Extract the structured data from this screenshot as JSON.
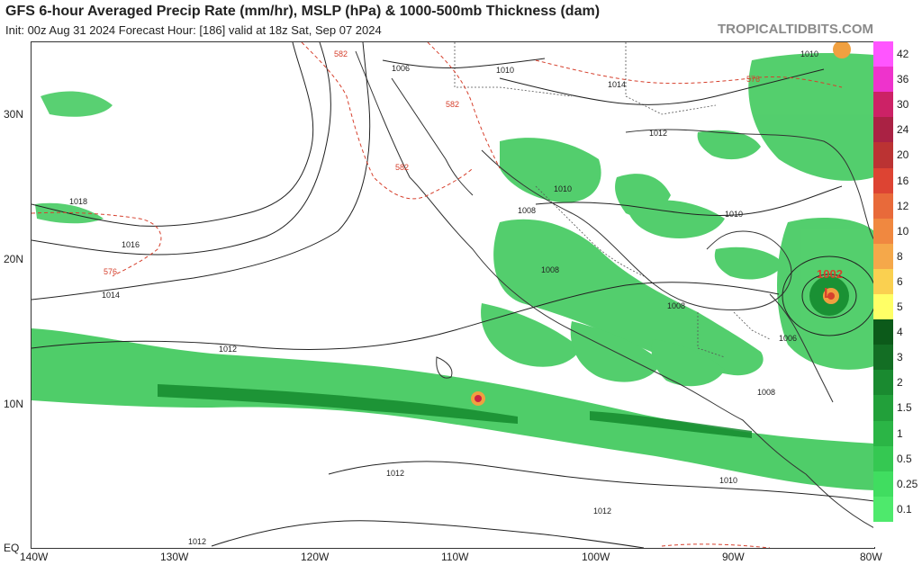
{
  "header": {
    "title": "GFS 6-hour Averaged Precip Rate (mm/hr), MSLP (hPa) & 1000-500mb Thickness (dam)",
    "subtitle": "Init: 00z Aug 31 2024   Forecast Hour: [186]   valid at 18z Sat, Sep 07 2024",
    "brand": "TROPICALTIDBITS.COM"
  },
  "axes": {
    "lat_labels": [
      "30N",
      "20N",
      "10N",
      "EQ"
    ],
    "lon_labels": [
      "140W",
      "130W",
      "120W",
      "110W",
      "100W",
      "90W",
      "80W"
    ]
  },
  "colorbar": {
    "levels": [
      "42",
      "36",
      "30",
      "24",
      "20",
      "16",
      "12",
      "10",
      "8",
      "6",
      "5",
      "4",
      "3",
      "2",
      "1.5",
      "1",
      "0.5",
      "0.25",
      "0.1"
    ],
    "colors": [
      "#ff55ff",
      "#ee33cc",
      "#cc2266",
      "#aa2244",
      "#bb3333",
      "#dd4433",
      "#e86a3a",
      "#f08840",
      "#f5a84a",
      "#fad050",
      "#ffff66",
      "#0c5a1a",
      "#136e24",
      "#1a8a30",
      "#22a03a",
      "#2bb546",
      "#35c852",
      "#40dd60",
      "#4ee96c"
    ]
  },
  "map": {
    "pressure_labels": [
      "1006",
      "1010",
      "1014",
      "1012",
      "1010",
      "1018",
      "1016",
      "1014",
      "1012",
      "1008",
      "1008",
      "1008",
      "1010",
      "1006",
      "1008",
      "1012",
      "1010",
      "1012",
      "1012",
      "1002",
      "1010"
    ],
    "thickness_labels": [
      "576",
      "582",
      "582",
      "576",
      "582"
    ],
    "low_center_value": "1002",
    "low_center_symbol": "L",
    "colors": {
      "precip": "#3cc859",
      "precip_heavy": "#148a2e",
      "isobar": "#222222",
      "thickness": "#d6402d",
      "border": "#333333"
    }
  }
}
